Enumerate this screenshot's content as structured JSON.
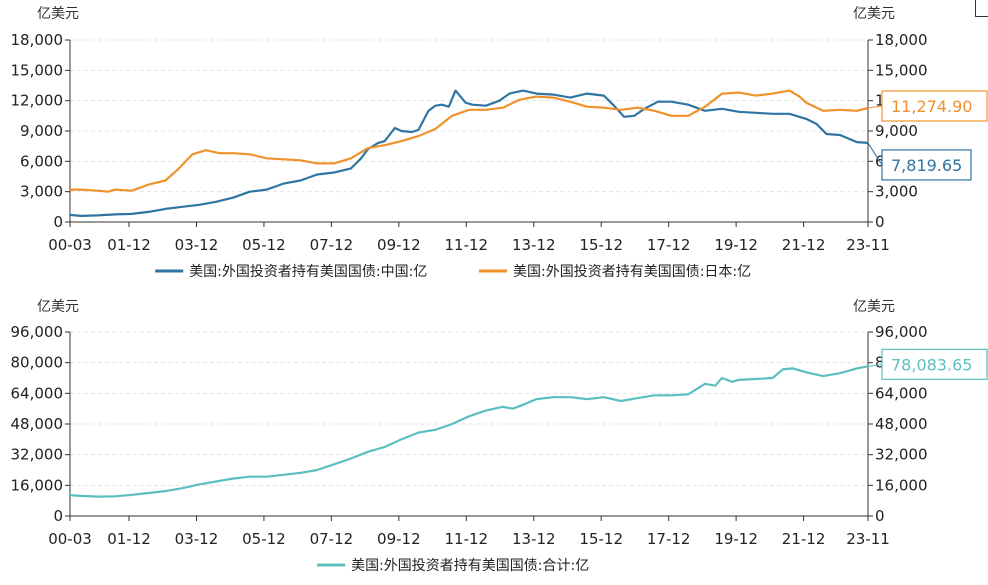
{
  "chart_data": [
    {
      "type": "line",
      "title": "",
      "ylabel_left": "亿美元",
      "ylabel_right": "亿美元",
      "ylim": [
        0,
        18000
      ],
      "yticks": [
        "0",
        "3,000",
        "6,000",
        "9,000",
        "12,000",
        "15,000",
        "18,000"
      ],
      "ytick_values": [
        0,
        3000,
        6000,
        9000,
        12000,
        15000,
        18000
      ],
      "xlim": [
        2000.17,
        2023.83
      ],
      "xticks": [
        "00-03",
        "01-12",
        "03-12",
        "05-12",
        "07-12",
        "09-12",
        "11-12",
        "13-12",
        "15-12",
        "17-12",
        "19-12",
        "21-12",
        "23-11"
      ],
      "xtick_values": [
        2000.17,
        2001.92,
        2003.92,
        2005.92,
        2007.92,
        2009.92,
        2011.92,
        2013.92,
        2015.92,
        2017.92,
        2019.92,
        2021.92,
        2023.83
      ],
      "grid": true,
      "legend_position": "bottom",
      "series": [
        {
          "name": "美国:外国投资者持有美国国债:中国:亿",
          "color": "#2e75a3",
          "end_label": "7,819.65",
          "x": [
            2000.17,
            2000.5,
            2001.0,
            2001.5,
            2002.0,
            2002.5,
            2003.0,
            2003.5,
            2004.0,
            2004.5,
            2005.0,
            2005.5,
            2006.0,
            2006.5,
            2007.0,
            2007.5,
            2008.0,
            2008.5,
            2008.8,
            2009.0,
            2009.3,
            2009.5,
            2009.8,
            2010.0,
            2010.3,
            2010.5,
            2010.8,
            2011.0,
            2011.2,
            2011.4,
            2011.6,
            2011.9,
            2012.1,
            2012.5,
            2012.9,
            2013.2,
            2013.6,
            2014.0,
            2014.5,
            2015.0,
            2015.5,
            2016.0,
            2016.3,
            2016.6,
            2016.9,
            2017.2,
            2017.6,
            2018.0,
            2018.5,
            2019.0,
            2019.5,
            2020.0,
            2020.5,
            2021.0,
            2021.5,
            2022.0,
            2022.3,
            2022.6,
            2023.0,
            2023.5,
            2023.83
          ],
          "values": [
            700,
            600,
            650,
            750,
            800,
            1000,
            1300,
            1500,
            1700,
            2000,
            2400,
            3000,
            3200,
            3800,
            4100,
            4700,
            4900,
            5300,
            6300,
            7200,
            7800,
            8000,
            9300,
            9000,
            8900,
            9100,
            11000,
            11500,
            11600,
            11400,
            13000,
            11800,
            11600,
            11500,
            12000,
            12700,
            13000,
            12700,
            12600,
            12300,
            12700,
            12500,
            11500,
            10400,
            10500,
            11200,
            11900,
            11900,
            11600,
            11000,
            11200,
            10900,
            10800,
            10700,
            10700,
            10200,
            9700,
            8700,
            8600,
            7900,
            7819.65
          ]
        },
        {
          "name": "美国:外国投资者持有美国国债:日本:亿",
          "color": "#f0922b",
          "end_label": "11,274.90",
          "x": [
            2000.17,
            2000.5,
            2001.0,
            2001.3,
            2001.5,
            2002.0,
            2002.5,
            2003.0,
            2003.4,
            2003.8,
            2004.2,
            2004.6,
            2005.0,
            2005.5,
            2006.0,
            2006.5,
            2007.0,
            2007.5,
            2008.0,
            2008.5,
            2009.0,
            2009.5,
            2010.0,
            2010.5,
            2011.0,
            2011.5,
            2012.0,
            2012.5,
            2013.0,
            2013.5,
            2014.0,
            2014.5,
            2015.0,
            2015.5,
            2016.0,
            2016.5,
            2017.0,
            2017.5,
            2018.0,
            2018.5,
            2019.0,
            2019.5,
            2020.0,
            2020.5,
            2021.0,
            2021.5,
            2021.8,
            2022.0,
            2022.5,
            2023.0,
            2023.5,
            2023.83
          ],
          "values": [
            3200,
            3200,
            3100,
            3000,
            3200,
            3100,
            3700,
            4100,
            5300,
            6700,
            7100,
            6800,
            6800,
            6700,
            6300,
            6200,
            6100,
            5800,
            5800,
            6300,
            7300,
            7600,
            8000,
            8500,
            9200,
            10500,
            11100,
            11100,
            11300,
            12100,
            12400,
            12300,
            11900,
            11400,
            11300,
            11100,
            11300,
            11000,
            10500,
            10500,
            11400,
            12700,
            12800,
            12500,
            12700,
            13000,
            12400,
            11800,
            11000,
            11100,
            11000,
            11274.9
          ]
        }
      ]
    },
    {
      "type": "line",
      "title": "",
      "ylabel_left": "亿美元",
      "ylabel_right": "亿美元",
      "ylim": [
        0,
        96000
      ],
      "yticks": [
        "0",
        "16,000",
        "32,000",
        "48,000",
        "64,000",
        "80,000",
        "96,000"
      ],
      "ytick_values": [
        0,
        16000,
        32000,
        48000,
        64000,
        80000,
        96000
      ],
      "xlim": [
        2000.17,
        2023.83
      ],
      "xticks": [
        "00-03",
        "01-12",
        "03-12",
        "05-12",
        "07-12",
        "09-12",
        "11-12",
        "13-12",
        "15-12",
        "17-12",
        "19-12",
        "21-12",
        "23-11"
      ],
      "xtick_values": [
        2000.17,
        2001.92,
        2003.92,
        2005.92,
        2007.92,
        2009.92,
        2011.92,
        2013.92,
        2015.92,
        2017.92,
        2019.92,
        2021.92,
        2023.83
      ],
      "grid": true,
      "legend_position": "bottom",
      "series": [
        {
          "name": "美国:外国投资者持有美国国债:合计:亿",
          "color": "#5cbfbf",
          "end_label": "78,083.65",
          "x": [
            2000.17,
            2000.5,
            2001.0,
            2001.5,
            2002.0,
            2002.5,
            2003.0,
            2003.5,
            2004.0,
            2004.5,
            2005.0,
            2005.5,
            2006.0,
            2006.5,
            2007.0,
            2007.5,
            2008.0,
            2008.5,
            2009.0,
            2009.5,
            2010.0,
            2010.5,
            2011.0,
            2011.5,
            2012.0,
            2012.5,
            2013.0,
            2013.3,
            2013.6,
            2014.0,
            2014.5,
            2015.0,
            2015.5,
            2016.0,
            2016.5,
            2017.0,
            2017.5,
            2018.0,
            2018.5,
            2019.0,
            2019.3,
            2019.5,
            2019.8,
            2020.0,
            2020.5,
            2021.0,
            2021.3,
            2021.6,
            2022.0,
            2022.5,
            2023.0,
            2023.5,
            2023.83
          ],
          "values": [
            10900,
            10500,
            10100,
            10300,
            11000,
            12000,
            13000,
            14500,
            16500,
            18000,
            19500,
            20500,
            20500,
            21500,
            22500,
            24000,
            27000,
            30000,
            33500,
            36000,
            40000,
            43500,
            45000,
            48000,
            52000,
            55000,
            57000,
            56000,
            58000,
            61000,
            62000,
            62000,
            61000,
            62000,
            60000,
            61500,
            63000,
            63000,
            63500,
            69000,
            68000,
            72000,
            70000,
            71000,
            71500,
            72000,
            76500,
            77000,
            75000,
            73000,
            74500,
            77000,
            78083.65
          ]
        }
      ]
    }
  ]
}
